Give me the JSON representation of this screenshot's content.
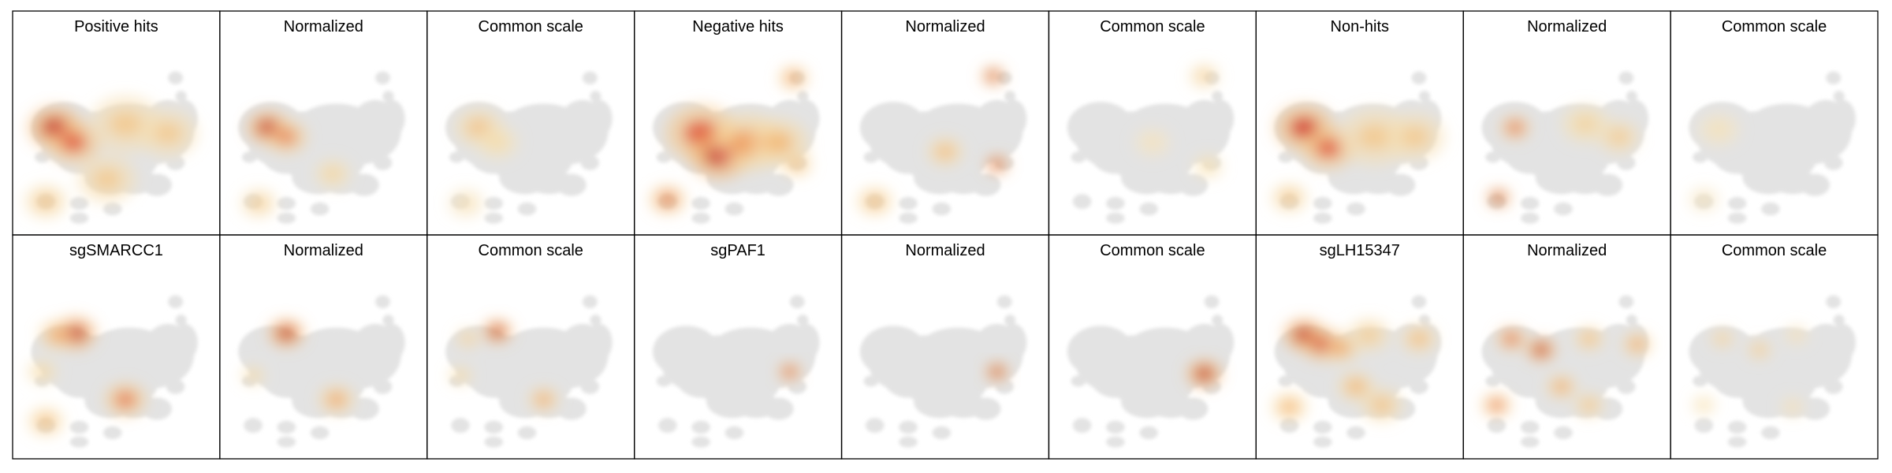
{
  "chart_data": {
    "type": "heatmap",
    "description_grid": "2 rows x 9 panels of UMAP density maps",
    "rows": [
      {
        "panels": [
          {
            "title": "Positive hits",
            "mode": "raw",
            "hotspots": [
              {
                "center": [
                  0.17,
                  0.47
                ],
                "intensity": 1.0,
                "spread": 0.09
              },
              {
                "center": [
                  0.27,
                  0.55
                ],
                "intensity": 0.75,
                "spread": 0.09
              },
              {
                "center": [
                  0.55,
                  0.45
                ],
                "intensity": 0.35,
                "spread": 0.12
              },
              {
                "center": [
                  0.78,
                  0.5
                ],
                "intensity": 0.35,
                "spread": 0.1
              },
              {
                "center": [
                  0.45,
                  0.75
                ],
                "intensity": 0.35,
                "spread": 0.1
              },
              {
                "center": [
                  0.12,
                  0.87
                ],
                "intensity": 0.4,
                "spread": 0.07
              }
            ]
          },
          {
            "title": "Normalized",
            "mode": "normalized",
            "hotspots": [
              {
                "center": [
                  0.2,
                  0.47
                ],
                "intensity": 1.0,
                "spread": 0.07
              },
              {
                "center": [
                  0.3,
                  0.52
                ],
                "intensity": 0.65,
                "spread": 0.07
              },
              {
                "center": [
                  0.55,
                  0.72
                ],
                "intensity": 0.3,
                "spread": 0.06
              },
              {
                "center": [
                  0.15,
                  0.88
                ],
                "intensity": 0.35,
                "spread": 0.06
              }
            ]
          },
          {
            "title": "Common scale",
            "mode": "common",
            "hotspots": [
              {
                "center": [
                  0.22,
                  0.47
                ],
                "intensity": 0.4,
                "spread": 0.08
              },
              {
                "center": [
                  0.32,
                  0.55
                ],
                "intensity": 0.25,
                "spread": 0.07
              },
              {
                "center": [
                  0.15,
                  0.88
                ],
                "intensity": 0.2,
                "spread": 0.06
              }
            ]
          },
          {
            "title": "Negative hits",
            "mode": "raw",
            "hotspots": [
              {
                "center": [
                  0.3,
                  0.5
                ],
                "intensity": 0.75,
                "spread": 0.12
              },
              {
                "center": [
                  0.4,
                  0.62
                ],
                "intensity": 1.0,
                "spread": 0.1
              },
              {
                "center": [
                  0.55,
                  0.55
                ],
                "intensity": 0.55,
                "spread": 0.12
              },
              {
                "center": [
                  0.72,
                  0.55
                ],
                "intensity": 0.45,
                "spread": 0.1
              },
              {
                "center": [
                  0.8,
                  0.2
                ],
                "intensity": 0.6,
                "spread": 0.05
              },
              {
                "center": [
                  0.12,
                  0.86
                ],
                "intensity": 0.7,
                "spread": 0.06
              },
              {
                "center": [
                  0.82,
                  0.67
                ],
                "intensity": 0.45,
                "spread": 0.05
              }
            ]
          },
          {
            "title": "Normalized",
            "mode": "normalized",
            "hotspots": [
              {
                "center": [
                  0.76,
                  0.19
                ],
                "intensity": 1.0,
                "spread": 0.04
              },
              {
                "center": [
                  0.78,
                  0.67
                ],
                "intensity": 0.95,
                "spread": 0.04
              },
              {
                "center": [
                  0.5,
                  0.6
                ],
                "intensity": 0.45,
                "spread": 0.06
              },
              {
                "center": [
                  0.12,
                  0.87
                ],
                "intensity": 0.45,
                "spread": 0.06
              }
            ]
          },
          {
            "title": "Common scale",
            "mode": "common",
            "hotspots": [
              {
                "center": [
                  0.78,
                  0.19
                ],
                "intensity": 0.35,
                "spread": 0.05
              },
              {
                "center": [
                  0.8,
                  0.68
                ],
                "intensity": 0.25,
                "spread": 0.05
              },
              {
                "center": [
                  0.5,
                  0.55
                ],
                "intensity": 0.15,
                "spread": 0.06
              }
            ]
          },
          {
            "title": "Non-hits",
            "mode": "raw",
            "hotspots": [
              {
                "center": [
                  0.2,
                  0.47
                ],
                "intensity": 0.85,
                "spread": 0.1
              },
              {
                "center": [
                  0.33,
                  0.58
                ],
                "intensity": 0.75,
                "spread": 0.09
              },
              {
                "center": [
                  0.58,
                  0.52
                ],
                "intensity": 0.35,
                "spread": 0.12
              },
              {
                "center": [
                  0.8,
                  0.52
                ],
                "intensity": 0.35,
                "spread": 0.1
              },
              {
                "center": [
                  0.12,
                  0.85
                ],
                "intensity": 0.4,
                "spread": 0.06
              }
            ]
          },
          {
            "title": "Normalized",
            "mode": "normalized",
            "hotspots": [
              {
                "center": [
                  0.13,
                  0.85
                ],
                "intensity": 1.0,
                "spread": 0.04
              },
              {
                "center": [
                  0.22,
                  0.47
                ],
                "intensity": 0.75,
                "spread": 0.05
              },
              {
                "center": [
                  0.6,
                  0.45
                ],
                "intensity": 0.3,
                "spread": 0.08
              },
              {
                "center": [
                  0.78,
                  0.52
                ],
                "intensity": 0.35,
                "spread": 0.07
              }
            ]
          },
          {
            "title": "Common scale",
            "mode": "common",
            "hotspots": [
              {
                "center": [
                  0.2,
                  0.48
                ],
                "intensity": 0.18,
                "spread": 0.07
              },
              {
                "center": [
                  0.12,
                  0.86
                ],
                "intensity": 0.18,
                "spread": 0.05
              }
            ]
          }
        ]
      },
      {
        "panels": [
          {
            "title": "sgSMARCC1",
            "mode": "raw",
            "hotspots": [
              {
                "center": [
                  0.28,
                  0.37
                ],
                "intensity": 1.0,
                "spread": 0.07
              },
              {
                "center": [
                  0.18,
                  0.38
                ],
                "intensity": 0.55,
                "spread": 0.06
              },
              {
                "center": [
                  0.55,
                  0.73
                ],
                "intensity": 0.7,
                "spread": 0.07
              },
              {
                "center": [
                  0.12,
                  0.85
                ],
                "intensity": 0.45,
                "spread": 0.06
              },
              {
                "center": [
                  0.1,
                  0.58
                ],
                "intensity": 0.3,
                "spread": 0.05
              }
            ]
          },
          {
            "title": "Normalized",
            "mode": "normalized",
            "hotspots": [
              {
                "center": [
                  0.3,
                  0.37
                ],
                "intensity": 1.0,
                "spread": 0.06
              },
              {
                "center": [
                  0.57,
                  0.73
                ],
                "intensity": 0.55,
                "spread": 0.06
              },
              {
                "center": [
                  0.12,
                  0.6
                ],
                "intensity": 0.3,
                "spread": 0.04
              }
            ]
          },
          {
            "title": "Common scale",
            "mode": "common",
            "hotspots": [
              {
                "center": [
                  0.32,
                  0.36
                ],
                "intensity": 1.0,
                "spread": 0.05
              },
              {
                "center": [
                  0.57,
                  0.73
                ],
                "intensity": 0.55,
                "spread": 0.05
              },
              {
                "center": [
                  0.16,
                  0.4
                ],
                "intensity": 0.35,
                "spread": 0.04
              },
              {
                "center": [
                  0.12,
                  0.6
                ],
                "intensity": 0.3,
                "spread": 0.04
              }
            ]
          },
          {
            "title": "sgPAF1",
            "mode": "raw",
            "hotspots": [
              {
                "center": [
                  0.78,
                  0.58
                ],
                "intensity": 0.85,
                "spread": 0.04
              }
            ]
          },
          {
            "title": "Normalized",
            "mode": "normalized",
            "hotspots": [
              {
                "center": [
                  0.78,
                  0.58
                ],
                "intensity": 1.0,
                "spread": 0.04
              }
            ]
          },
          {
            "title": "Common scale",
            "mode": "common",
            "hotspots": [
              {
                "center": [
                  0.78,
                  0.59
                ],
                "intensity": 1.0,
                "spread": 0.06
              }
            ]
          },
          {
            "title": "sgLH15347",
            "mode": "raw",
            "hotspots": [
              {
                "center": [
                  0.2,
                  0.38
                ],
                "intensity": 1.0,
                "spread": 0.07
              },
              {
                "center": [
                  0.3,
                  0.43
                ],
                "intensity": 0.85,
                "spread": 0.07
              },
              {
                "center": [
                  0.4,
                  0.45
                ],
                "intensity": 0.55,
                "spread": 0.06
              },
              {
                "center": [
                  0.55,
                  0.38
                ],
                "intensity": 0.35,
                "spread": 0.07
              },
              {
                "center": [
                  0.82,
                  0.4
                ],
                "intensity": 0.45,
                "spread": 0.06
              },
              {
                "center": [
                  0.48,
                  0.66
                ],
                "intensity": 0.5,
                "spread": 0.06
              },
              {
                "center": [
                  0.12,
                  0.77
                ],
                "intensity": 0.5,
                "spread": 0.06
              },
              {
                "center": [
                  0.62,
                  0.76
                ],
                "intensity": 0.4,
                "spread": 0.07
              }
            ]
          },
          {
            "title": "Normalized",
            "mode": "normalized",
            "hotspots": [
              {
                "center": [
                  0.2,
                  0.4
                ],
                "intensity": 0.75,
                "spread": 0.05
              },
              {
                "center": [
                  0.36,
                  0.46
                ],
                "intensity": 1.0,
                "spread": 0.05
              },
              {
                "center": [
                  0.62,
                  0.4
                ],
                "intensity": 0.45,
                "spread": 0.05
              },
              {
                "center": [
                  0.88,
                  0.43
                ],
                "intensity": 0.55,
                "spread": 0.05
              },
              {
                "center": [
                  0.47,
                  0.66
                ],
                "intensity": 0.55,
                "spread": 0.05
              },
              {
                "center": [
                  0.12,
                  0.76
                ],
                "intensity": 0.7,
                "spread": 0.05
              },
              {
                "center": [
                  0.62,
                  0.76
                ],
                "intensity": 0.4,
                "spread": 0.05
              }
            ]
          },
          {
            "title": "Common scale",
            "mode": "common",
            "hotspots": [
              {
                "center": [
                  0.22,
                  0.4
                ],
                "intensity": 0.35,
                "spread": 0.04
              },
              {
                "center": [
                  0.42,
                  0.46
                ],
                "intensity": 0.4,
                "spread": 0.04
              },
              {
                "center": [
                  0.62,
                  0.38
                ],
                "intensity": 0.2,
                "spread": 0.04
              },
              {
                "center": [
                  0.12,
                  0.76
                ],
                "intensity": 0.25,
                "spread": 0.04
              },
              {
                "center": [
                  0.6,
                  0.77
                ],
                "intensity": 0.2,
                "spread": 0.04
              }
            ]
          }
        ]
      }
    ],
    "colormap": [
      "#f5ecd5",
      "#f7d79a",
      "#f2a45a",
      "#e0533a",
      "#c00d1e"
    ],
    "background_cells_color": "#e3e3e3",
    "axes": "none"
  }
}
